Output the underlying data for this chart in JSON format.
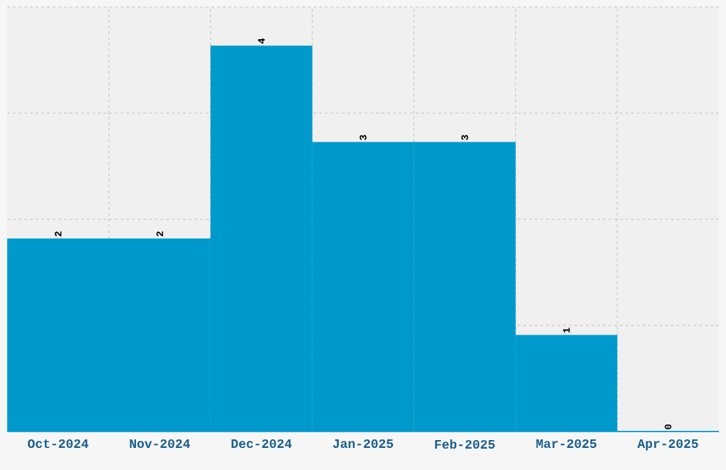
{
  "chart_data": {
    "type": "bar",
    "categories": [
      "Oct-2024",
      "Nov-2024",
      "Dec-2024",
      "Jan-2025",
      "Feb-2025",
      "Mar-2025",
      "Apr-2025"
    ],
    "values": [
      2,
      2,
      4,
      3,
      3,
      1,
      0
    ],
    "color": "#0099cc",
    "data_labels": true,
    "grid": true,
    "tick_labels": "x"
  }
}
